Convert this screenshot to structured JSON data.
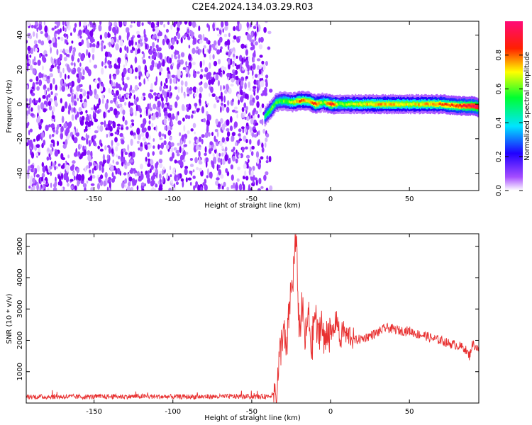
{
  "title": "C2E4.2024.134.03.29.R03",
  "chart_data": [
    {
      "type": "heatmap",
      "xlabel": "Height of straight line (km)",
      "ylabel": "Frequency (Hz)",
      "xlim": [
        -193,
        94
      ],
      "ylim": [
        -50,
        48
      ],
      "xticks": [
        -150,
        -100,
        -50,
        0,
        50
      ],
      "yticks": [
        -40,
        -20,
        0,
        20,
        40
      ],
      "colorbar": {
        "label": "Normalized spectral amplitude",
        "range": [
          0,
          1
        ],
        "ticks": [
          0.0,
          0.2,
          0.4,
          0.6,
          0.8
        ],
        "tick_labels": [
          "0.0",
          "0.2",
          "0.4",
          "0.6",
          "0.8"
        ],
        "colormap": [
          "#ffffff",
          "#7a00ff",
          "#0000ff",
          "#00ffff",
          "#00ff00",
          "#ffff00",
          "#ff0000",
          "#ff0080"
        ]
      },
      "noise_region_x": [
        -193,
        -40
      ],
      "signal_ridge": {
        "x": [
          -42,
          -38,
          -35,
          -30,
          -25,
          -20,
          -15,
          -10,
          -5,
          0,
          5,
          10,
          20,
          30,
          40,
          50,
          60,
          70,
          80,
          90,
          94
        ],
        "freq": [
          -7,
          -3,
          1,
          2,
          1,
          2,
          2,
          0,
          1,
          0,
          0,
          0,
          0,
          0,
          0,
          0,
          0,
          0,
          -1,
          -1,
          -2
        ],
        "amplitude": [
          0.5,
          0.6,
          0.55,
          0.6,
          0.65,
          0.8,
          0.7,
          0.85,
          0.6,
          0.9,
          0.6,
          0.65,
          0.7,
          0.75,
          0.75,
          0.7,
          0.75,
          0.8,
          0.85,
          0.95,
          1.0
        ]
      },
      "grid": false
    },
    {
      "type": "line",
      "xlabel": "Height of straight line (km)",
      "ylabel": "SNR (10 * v/v)",
      "xlim": [
        -193,
        94
      ],
      "ylim": [
        0,
        5400
      ],
      "xticks": [
        -150,
        -100,
        -50,
        0,
        50
      ],
      "yticks": [
        1000,
        2000,
        3000,
        4000,
        5000
      ],
      "series": [
        {
          "color": "#e83030",
          "x": [
            -193,
            -150,
            -120,
            -100,
            -80,
            -60,
            -45,
            -38,
            -34,
            -32,
            -30,
            -28,
            -26,
            -24,
            -22,
            -21,
            -20,
            -18,
            -16,
            -14,
            -12,
            -10,
            -8,
            -6,
            -4,
            -2,
            0,
            2,
            4,
            6,
            8,
            10,
            12,
            15,
            20,
            25,
            30,
            35,
            40,
            45,
            50,
            55,
            60,
            65,
            70,
            75,
            80,
            85,
            88,
            90,
            94
          ],
          "y": [
            200,
            200,
            210,
            200,
            200,
            210,
            200,
            230,
            500,
            1600,
            2400,
            1500,
            3200,
            3900,
            5300,
            4100,
            2300,
            3000,
            2000,
            2800,
            1700,
            2900,
            2000,
            2700,
            1800,
            2500,
            2100,
            2300,
            2800,
            1900,
            2400,
            2100,
            2200,
            2000,
            2050,
            2150,
            2250,
            2400,
            2350,
            2300,
            2300,
            2200,
            2150,
            2050,
            2000,
            1900,
            1850,
            1750,
            1500,
            1900,
            1700
          ]
        }
      ],
      "grid": false
    }
  ]
}
